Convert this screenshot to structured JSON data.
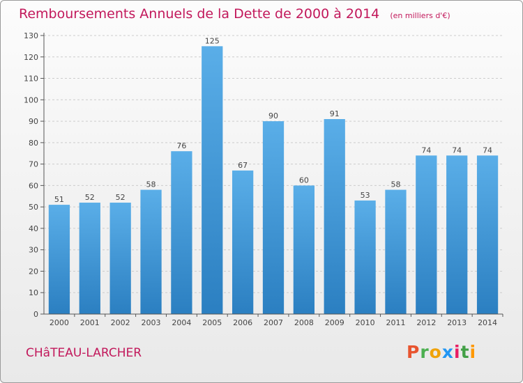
{
  "header": {
    "title": "Remboursements Annuels de la Dette de 2000 à 2014",
    "unit": "(en milliers d'€)"
  },
  "footer": {
    "commune": "CHâTEAU-LARCHER",
    "brand": {
      "letters": [
        "P",
        "r",
        "o",
        "x",
        "i",
        "t",
        "i"
      ],
      "colors": [
        "#e8542f",
        "#4caf50",
        "#f0a30a",
        "#2196f3",
        "#e91e63",
        "#43a047",
        "#ff9800"
      ]
    }
  },
  "chart_data": {
    "type": "bar",
    "categories": [
      "2000",
      "2001",
      "2002",
      "2003",
      "2004",
      "2005",
      "2006",
      "2007",
      "2008",
      "2009",
      "2010",
      "2011",
      "2012",
      "2013",
      "2014"
    ],
    "values": [
      51,
      52,
      52,
      58,
      76,
      125,
      67,
      90,
      60,
      91,
      53,
      58,
      74,
      74,
      74
    ],
    "ylim": [
      0,
      130
    ],
    "yticks": [
      0,
      10,
      20,
      30,
      40,
      50,
      60,
      70,
      80,
      90,
      100,
      110,
      120,
      130
    ],
    "grid": true,
    "colors": {
      "bar_light": "#5aaee8",
      "bar_dark": "#2b7fc1",
      "grid": "#cccccc",
      "axis": "#555555",
      "label": "#444444"
    }
  }
}
